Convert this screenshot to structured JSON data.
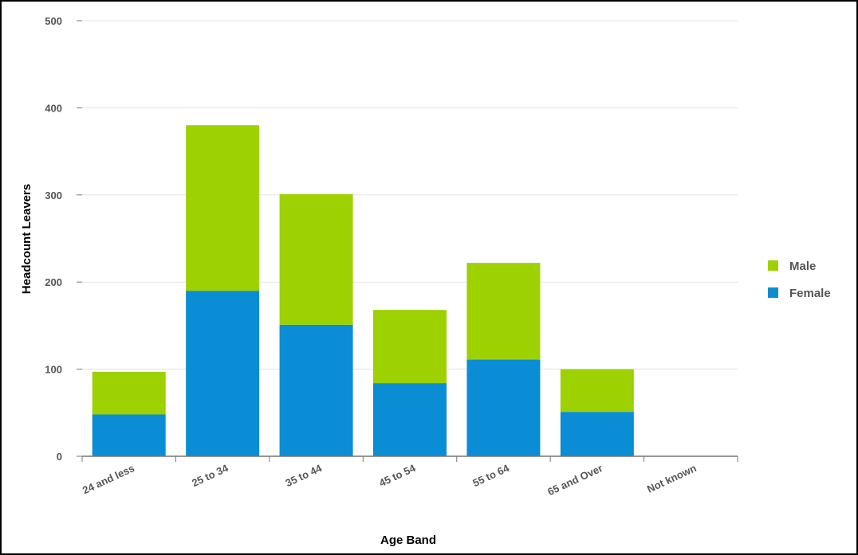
{
  "chart_data": {
    "type": "bar",
    "stacked": true,
    "title": "",
    "xlabel": "Age Band",
    "ylabel": "Headcount Leavers",
    "categories": [
      "24 and less",
      "25 to 34",
      "35 to 44",
      "45 to 54",
      "55 to 64",
      "65 and Over",
      "Not known"
    ],
    "series": [
      {
        "name": "Female",
        "color": "#0a8dd4",
        "values": [
          48,
          190,
          151,
          84,
          111,
          51,
          0
        ]
      },
      {
        "name": "Male",
        "color": "#9dd102",
        "values": [
          49,
          190,
          150,
          84,
          111,
          49,
          0
        ]
      }
    ],
    "ylim": [
      0,
      500
    ],
    "yticks": [
      0,
      100,
      200,
      300,
      400,
      500
    ],
    "grid": true,
    "legend": {
      "placement": "right",
      "entries": [
        "Male",
        "Female"
      ]
    }
  }
}
